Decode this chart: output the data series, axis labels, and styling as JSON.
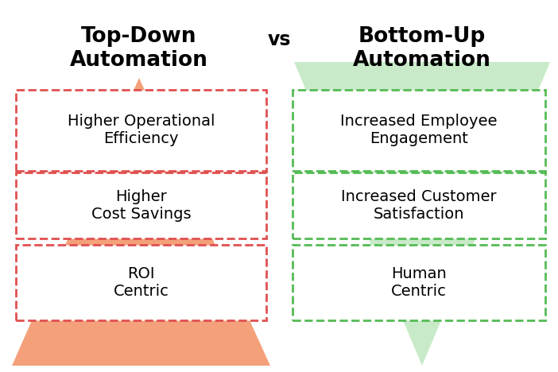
{
  "title_left": "Top-Down\nAutomation",
  "title_right": "Bottom-Up\nAutomation",
  "vs_text": "vs",
  "left_items": [
    "Higher Operational\nEfficiency",
    "Higher\nCost Savings",
    "ROI\nCentric"
  ],
  "right_items": [
    "Increased Employee\nEngagement",
    "Increased Customer\nSatisfaction",
    "Human\nCentric"
  ],
  "left_color": "#F4A07A",
  "right_color": "#C8EAC8",
  "left_border_color": "#E05050",
  "right_border_color": "#55BB55",
  "bg_color": "#FFFFFF",
  "title_fontsize": 19,
  "item_fontsize": 14,
  "vs_fontsize": 17
}
